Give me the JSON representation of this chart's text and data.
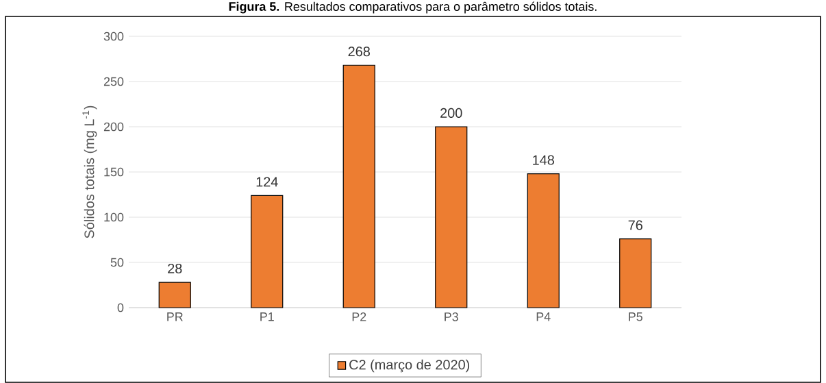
{
  "chart_data": {
    "type": "bar",
    "title": "**Figura 5.** Resultados comparativos para o parâmetro sólidos totais.",
    "ylabel": "Sólidos totais (mg L$^{-1}$)",
    "categories": [
      "PR",
      "P1",
      "P2",
      "P3",
      "P4",
      "P5"
    ],
    "series": [
      {
        "name": "C2 (março de 2020)",
        "color": "#ed7d31",
        "values": [
          28,
          124,
          268,
          200,
          148,
          76
        ]
      }
    ],
    "ylim": [
      0,
      300
    ],
    "yticks": [
      0,
      50,
      100,
      150,
      200,
      250,
      300
    ],
    "grid": "y",
    "legend": "bottom",
    "data_labels": true
  }
}
